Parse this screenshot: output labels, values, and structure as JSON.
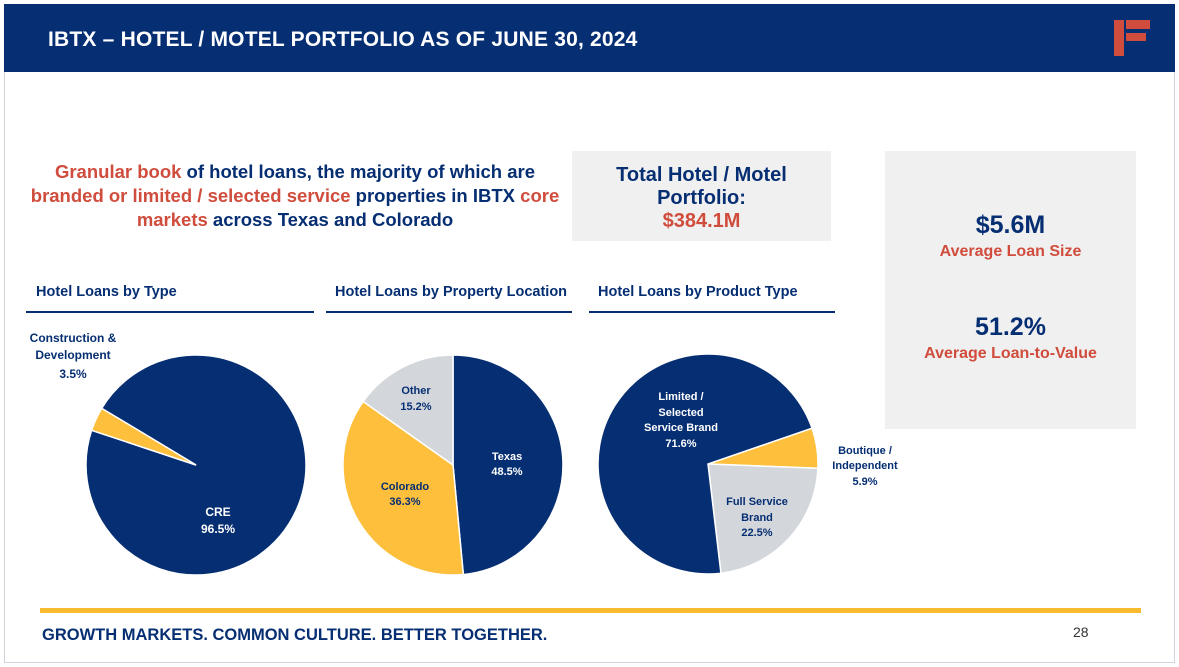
{
  "header": {
    "title": "IBTX – HOTEL / MOTEL PORTFOLIO AS OF JUNE 30, 2024"
  },
  "intro": {
    "p1": "Granular book",
    "p2": " of hotel loans, the majority of which are ",
    "p3": "branded or limited / selected service",
    "p4": " properties in IBTX ",
    "p5": "core markets",
    "p6": " across Texas and Colorado"
  },
  "total": {
    "label": "Total Hotel / Motel Portfolio:",
    "value": "$384.1M"
  },
  "stats": {
    "avg_loan_value": "$5.6M",
    "avg_loan_label": "Average Loan Size",
    "ltv_value": "51.2%",
    "ltv_label": "Average Loan-to-Value"
  },
  "colors": {
    "navy": "#062e72",
    "gold": "#fdbf3c",
    "gray": "#d3d6db",
    "red": "#d04c3c"
  },
  "chart_data": [
    {
      "type": "pie",
      "title": "Hotel Loans by Type",
      "slices": [
        {
          "label": "CRE",
          "value": 96.5,
          "display": "96.5%",
          "color": "#062e72"
        },
        {
          "label": "Construction & Development",
          "value": 3.5,
          "display": "3.5%",
          "color": "#fdbf3c"
        }
      ]
    },
    {
      "type": "pie",
      "title": "Hotel Loans by Property Location",
      "slices": [
        {
          "label": "Texas",
          "value": 48.5,
          "display": "48.5%",
          "color": "#062e72"
        },
        {
          "label": "Colorado",
          "value": 36.3,
          "display": "36.3%",
          "color": "#fdbf3c"
        },
        {
          "label": "Other",
          "value": 15.2,
          "display": "15.2%",
          "color": "#d3d6db"
        }
      ]
    },
    {
      "type": "pie",
      "title": "Hotel Loans by Product Type",
      "slices": [
        {
          "label": "Boutique / Independent",
          "value": 5.9,
          "display": "5.9%",
          "color": "#fdbf3c"
        },
        {
          "label": "Full Service Brand",
          "value": 22.5,
          "display": "22.5%",
          "color": "#d3d6db"
        },
        {
          "label": "Limited / Selected Service Brand",
          "value": 71.6,
          "display": "71.6%",
          "color": "#062e72"
        }
      ]
    }
  ],
  "footer": {
    "tagline": "GROWTH MARKETS. COMMON CULTURE. BETTER TOGETHER.",
    "page": "28"
  }
}
